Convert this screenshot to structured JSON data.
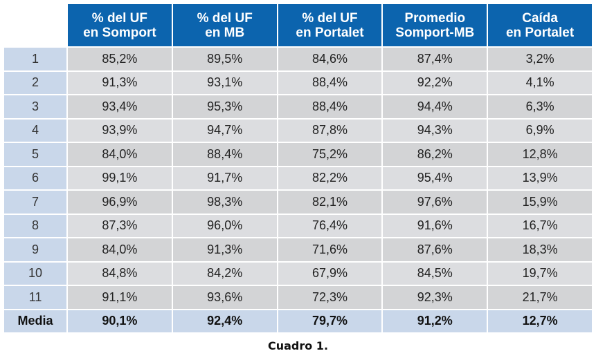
{
  "table": {
    "headers": [
      {
        "line1": "% del UF",
        "line2": "en Somport"
      },
      {
        "line1": "% del UF",
        "line2": "en MB"
      },
      {
        "line1": "% del UF",
        "line2": "en Portalet"
      },
      {
        "line1": "Promedio",
        "line2": "Somport-MB"
      },
      {
        "line1": "Caída",
        "line2": "en Portalet"
      }
    ],
    "rows": [
      {
        "label": "1",
        "cells": [
          "85,2%",
          "89,5%",
          "84,6%",
          "87,4%",
          "3,2%"
        ]
      },
      {
        "label": "2",
        "cells": [
          "91,3%",
          "93,1%",
          "88,4%",
          "92,2%",
          "4,1%"
        ]
      },
      {
        "label": "3",
        "cells": [
          "93,4%",
          "95,3%",
          "88,4%",
          "94,4%",
          "6,3%"
        ]
      },
      {
        "label": "4",
        "cells": [
          "93,9%",
          "94,7%",
          "87,8%",
          "94,3%",
          "6,9%"
        ]
      },
      {
        "label": "5",
        "cells": [
          "84,0%",
          "88,4%",
          "75,2%",
          "86,2%",
          "12,8%"
        ]
      },
      {
        "label": "6",
        "cells": [
          "99,1%",
          "91,7%",
          "82,2%",
          "95,4%",
          "13,9%"
        ]
      },
      {
        "label": "7",
        "cells": [
          "96,9%",
          "98,3%",
          "82,1%",
          "97,6%",
          "15,9%"
        ]
      },
      {
        "label": "8",
        "cells": [
          "87,3%",
          "96,0%",
          "76,4%",
          "91,6%",
          "16,7%"
        ]
      },
      {
        "label": "9",
        "cells": [
          "84,0%",
          "91,3%",
          "71,6%",
          "87,6%",
          "18,3%"
        ]
      },
      {
        "label": "10",
        "cells": [
          "84,8%",
          "84,2%",
          "67,9%",
          "84,5%",
          "19,7%"
        ]
      },
      {
        "label": "11",
        "cells": [
          "91,1%",
          "93,6%",
          "72,3%",
          "92,3%",
          "21,7%"
        ]
      }
    ],
    "summary": {
      "label": "Media",
      "cells": [
        "90,1%",
        "92,4%",
        "79,7%",
        "91,2%",
        "12,7%"
      ]
    }
  },
  "caption": "Cuadro 1.",
  "colors": {
    "header_bg": "#0c64ae",
    "header_text": "#ffffff",
    "row_label_bg": "#c9d7ea",
    "cell_bg_a": "#d3d4d6",
    "cell_bg_b": "#dcdde0"
  }
}
